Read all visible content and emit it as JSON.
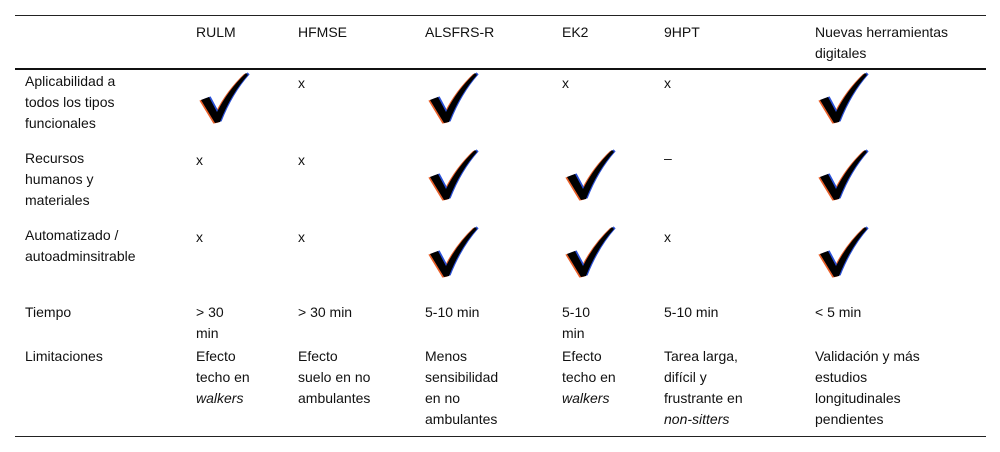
{
  "headers": [
    "",
    "RULM",
    "HFMSE",
    "ALSFRS-R",
    "EK2",
    "9HPT",
    "Nuevas herramientas digitales"
  ],
  "rows": [
    {
      "label": [
        "Aplicabilidad a",
        "todos los tipos",
        "funcionales"
      ],
      "cells": [
        "check",
        "x",
        "check",
        "x",
        "x",
        "check"
      ]
    },
    {
      "label": [
        "Recursos",
        "humanos y",
        "materiales"
      ],
      "cells": [
        "x",
        "x",
        "check",
        "check",
        "–",
        "check"
      ]
    },
    {
      "label": [
        "Automatizado /",
        "autoadminsitrable"
      ],
      "cells": [
        "x",
        "x",
        "check",
        "check",
        "x",
        "check"
      ]
    },
    {
      "label": [
        "Tiempo"
      ],
      "cells": [
        [
          "> 30",
          "min"
        ],
        [
          "> 30 min"
        ],
        [
          "5-10 min"
        ],
        [
          "5-10",
          "min"
        ],
        [
          "5-10 min"
        ],
        [
          "< 5 min"
        ]
      ]
    },
    {
      "label": [
        "Limitaciones"
      ],
      "cells": [
        [
          {
            "t": "Efecto"
          },
          {
            "t": "techo en"
          },
          {
            "t": "walkers",
            "i": true
          }
        ],
        [
          {
            "t": "Efecto"
          },
          {
            "t": "suelo en no"
          },
          {
            "t": "ambulantes"
          }
        ],
        [
          {
            "t": "Menos"
          },
          {
            "t": "sensibilidad"
          },
          {
            "t": "en no"
          },
          {
            "t": "ambulantes"
          }
        ],
        [
          {
            "t": "Efecto"
          },
          {
            "t": "techo en"
          },
          {
            "t": "walkers",
            "i": true
          }
        ],
        [
          {
            "t": "Tarea larga,"
          },
          {
            "t": "difícil y"
          },
          {
            "t": "frustrante en"
          },
          {
            "t": "non-sitters",
            "i": true
          }
        ],
        [
          {
            "t": "Validación y más"
          },
          {
            "t": "estudios"
          },
          {
            "t": "longitudinales"
          },
          {
            "t": "pendientes"
          }
        ]
      ]
    }
  ],
  "check_icon": "checkmark-icon",
  "colors": {
    "text": "#111111",
    "rule": "#222222",
    "check": "#000000",
    "fringe_red": "#e8602a",
    "fringe_blue": "#2a50d8"
  }
}
